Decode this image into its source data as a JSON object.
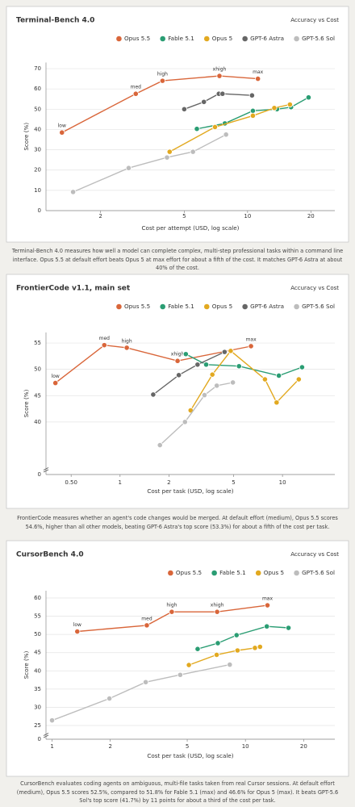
{
  "chart_data": [
    {
      "type": "line",
      "title": "Terminal-Bench 4.0",
      "subtitle": "Accuracy vs Cost",
      "x_label": "Cost per attempt (USD, log scale)",
      "y_label": "Score (%)",
      "log_x": true,
      "grid": true,
      "legend": "top-right",
      "xlim": [
        1.1,
        26
      ],
      "xticks": [
        2,
        5,
        10,
        20
      ],
      "ylim": [
        0,
        73
      ],
      "yticks": [
        0,
        10,
        20,
        30,
        40,
        50,
        60,
        70
      ],
      "series": [
        {
          "name": "Opus 5.5",
          "color": "#d9663a",
          "x": [
            1.31,
            2.94,
            3.94,
            7.35,
            11.2
          ],
          "values": [
            38.5,
            57.6,
            64,
            66.4,
            65
          ],
          "point_labels": [
            "low",
            "med",
            "high",
            "xhigh",
            "max"
          ]
        },
        {
          "name": "Fable 5.1",
          "color": "#2a9d73",
          "x": [
            5.74,
            7.8,
            10.6,
            13.8,
            16.1,
            19.5
          ],
          "values": [
            40.3,
            43,
            49.2,
            50,
            51,
            55.8
          ]
        },
        {
          "name": "Opus 5",
          "color": "#e2a920",
          "x": [
            4.26,
            7.0,
            10.6,
            13.4,
            15.9
          ],
          "values": [
            29,
            41.2,
            46.8,
            50.6,
            52.3
          ]
        },
        {
          "name": "GPT-6 Astra",
          "color": "#666666",
          "x": [
            5.0,
            6.2,
            7.3,
            7.6,
            10.5
          ],
          "values": [
            50,
            53.6,
            57.6,
            57.6,
            56.8
          ]
        },
        {
          "name": "GPT-5.6 Sol",
          "color": "#bdbdbd",
          "x": [
            1.48,
            2.72,
            4.14,
            5.5,
            7.9
          ],
          "values": [
            9.2,
            21,
            26.2,
            29,
            37.5
          ]
        }
      ],
      "caption": "Terminal-Bench 4.0 measures how well a model can complete complex, multi-step professional tasks within a command line interface. Opus 5.5 at default effort beats Opus 5 at max effort for about a fifth of the cost. It matches GPT-6 Astra at about 40% of the cost."
    },
    {
      "type": "line",
      "title": "FrontierCode v1.1, main set",
      "subtitle": "Accuracy vs Cost",
      "x_label": "Cost per task (USD, log scale)",
      "y_label": "Score (%)",
      "log_x": true,
      "grid": true,
      "legend": "top-right",
      "xlim": [
        0.35,
        21
      ],
      "xticks": [
        {
          "value": 0.5,
          "label": "0.50"
        },
        1,
        2,
        5,
        10
      ],
      "ylim": [
        0,
        57
      ],
      "axis_break": [
        0,
        34
      ],
      "yticks": [
        0,
        40,
        45,
        50,
        55
      ],
      "series": [
        {
          "name": "Opus 5.5",
          "color": "#d9663a",
          "x": [
            0.4,
            0.8,
            1.1,
            2.26,
            6.4
          ],
          "values": [
            47.4,
            54.6,
            54.1,
            51.6,
            54.4
          ],
          "point_labels": [
            "low",
            "med",
            "high",
            "xhigh",
            "max"
          ]
        },
        {
          "name": "Fable 5.1",
          "color": "#2a9d73",
          "x": [
            2.54,
            3.39,
            5.4,
            9.5,
            13.2
          ],
          "values": [
            52.9,
            50.9,
            50.6,
            48.8,
            50.4
          ]
        },
        {
          "name": "Opus 5",
          "color": "#e2a920",
          "x": [
            2.72,
            3.7,
            4.8,
            7.8,
            9.2,
            12.6
          ],
          "values": [
            42.2,
            49,
            53.5,
            48.1,
            43.7,
            48.1
          ]
        },
        {
          "name": "GPT-6 Astra",
          "color": "#666666",
          "x": [
            1.6,
            2.3,
            3.0,
            4.4
          ],
          "values": [
            45.2,
            48.9,
            50.9,
            53.3
          ]
        },
        {
          "name": "GPT-5.6 Sol",
          "color": "#bdbdbd",
          "x": [
            1.76,
            2.51,
            3.31,
            3.94,
            4.95
          ],
          "values": [
            35.6,
            40,
            45.1,
            46.9,
            47.5
          ]
        }
      ],
      "caption": "FrontierCode measures whether an agent's code changes would be merged. At default effort (medium), Opus 5.5 scores 54.6%, higher than all other models, beating GPT-6 Astra's top score (53.3%) for about a fifth of the cost per task."
    },
    {
      "type": "line",
      "title": "CursorBench 4.0",
      "subtitle": "Accuracy vs Cost",
      "x_label": "Cost per task (USD, log scale)",
      "y_label": "Score (%)",
      "log_x": true,
      "grid": true,
      "legend": "top-right",
      "xlim": [
        0.93,
        29
      ],
      "xticks": [
        1,
        2,
        5,
        10,
        20
      ],
      "ylim": [
        0,
        62
      ],
      "axis_break": [
        0,
        23
      ],
      "yticks": [
        0,
        25,
        30,
        35,
        40,
        45,
        50,
        55,
        60
      ],
      "series": [
        {
          "name": "Opus 5.5",
          "color": "#d9663a",
          "x": [
            1.35,
            3.09,
            4.16,
            7.14,
            13
          ],
          "values": [
            50.8,
            52.5,
            56.2,
            56.2,
            58
          ],
          "point_labels": [
            "low",
            "med",
            "high",
            "xhigh",
            "max"
          ]
        },
        {
          "name": "Fable 5.1",
          "color": "#2a9d73",
          "x": [
            5.66,
            7.2,
            9.0,
            12.9,
            16.7
          ],
          "values": [
            46,
            47.6,
            49.8,
            52.2,
            51.8
          ]
        },
        {
          "name": "Opus 5",
          "color": "#e2a920",
          "x": [
            5.1,
            7.1,
            9.1,
            11.2,
            11.9
          ],
          "values": [
            41.6,
            44.4,
            45.6,
            46.3,
            46.6
          ]
        },
        {
          "name": "GPT-5.6 Sol",
          "color": "#bdbdbd",
          "x": [
            1.0,
            1.98,
            3.05,
            4.6,
            8.3
          ],
          "values": [
            26.4,
            32.4,
            36.9,
            38.9,
            41.7
          ]
        }
      ],
      "caption": "CursorBench evaluates coding agents on ambiguous, multi-file tasks taken from real Cursor sessions. At default effort (medium), Opus 5.5 scores 52.5%, compared to 51.8% for Fable 5.1 (max) and 46.6% for Opus 5 (max). It beats GPT-5.6 Sol's top score (41.7%) by 11 points for about a third of the cost per task."
    }
  ]
}
